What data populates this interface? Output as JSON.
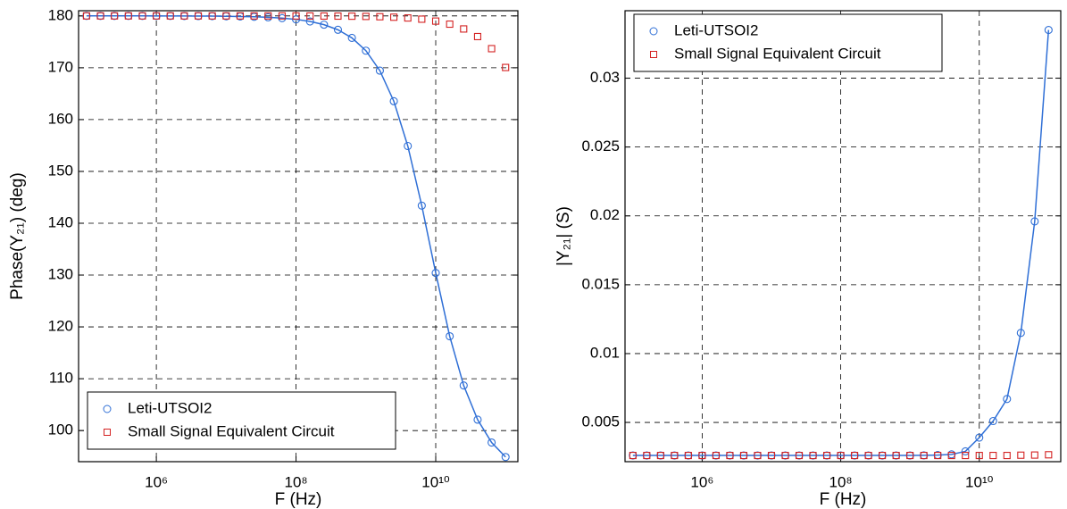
{
  "chart_data": [
    {
      "type": "line",
      "xlabel": "F (Hz)",
      "ylabel": "Phase(Y₂₁) (deg)",
      "xscale": "log",
      "grid": true,
      "legend": "lower left",
      "xlim": [
        77000,
        150000000000
      ],
      "xticks": [
        {
          "value": 1000000.0,
          "label": "10⁶"
        },
        {
          "value": 100000000.0,
          "label": "10⁸"
        },
        {
          "value": 10000000000.0,
          "label": "10¹⁰"
        }
      ],
      "ylim": [
        94,
        181
      ],
      "yticks": [
        100,
        110,
        120,
        130,
        140,
        150,
        160,
        170,
        180
      ],
      "x": [
        100000.0,
        158500.0,
        251200.0,
        398100.0,
        631000.0,
        1000000.0,
        1585000.0,
        2512000.0,
        3981000.0,
        6310000.0,
        10000000.0,
        15850000.0,
        25120000.0,
        39810000.0,
        63100000.0,
        100000000.0,
        158500000.0,
        251200000.0,
        398100000.0,
        631000000.0,
        1000000000.0,
        1585000000.0,
        2512000000.0,
        3981000000.0,
        6310000000.0,
        10000000000.0,
        15850000000.0,
        25120000000.0,
        39810000000.0,
        63100000000.0,
        100000000000.0
      ],
      "series": [
        {
          "name": "Leti-UTSOI2",
          "color": "#2f6fd6",
          "marker": "circle",
          "line": true,
          "values": [
            180,
            180,
            180,
            180,
            180,
            179.99,
            179.99,
            179.98,
            179.97,
            179.96,
            179.93,
            179.89,
            179.83,
            179.73,
            179.57,
            179.33,
            178.93,
            178.31,
            177.32,
            175.76,
            173.29,
            169.44,
            163.54,
            154.9,
            143.4,
            130.4,
            118.2,
            108.7,
            102.1,
            97.7,
            94.9
          ]
        },
        {
          "name": "Small Signal Equivalent Circuit",
          "color": "#d42222",
          "marker": "square",
          "line": false,
          "values": [
            180,
            180,
            180,
            180,
            180,
            180,
            180,
            180,
            180,
            180,
            180,
            180,
            180,
            180,
            180,
            179.99,
            179.98,
            179.97,
            179.96,
            179.94,
            179.9,
            179.84,
            179.75,
            179.6,
            179.37,
            179.0,
            178.41,
            177.48,
            176.01,
            173.68,
            170.05
          ]
        }
      ]
    },
    {
      "type": "line",
      "xlabel": "F (Hz)",
      "ylabel": "|Y₂₁| (S)",
      "xscale": "log",
      "grid": true,
      "legend": "upper left",
      "xlim": [
        77000,
        150000000000
      ],
      "xticks": [
        {
          "value": 1000000.0,
          "label": "10⁶"
        },
        {
          "value": 100000000.0,
          "label": "10⁸"
        },
        {
          "value": 10000000000.0,
          "label": "10¹⁰"
        }
      ],
      "ylim": [
        0.00215,
        0.0349
      ],
      "yticks": [
        0.005,
        0.01,
        0.015,
        0.02,
        0.025,
        0.03
      ],
      "x": [
        100000.0,
        158500.0,
        251200.0,
        398100.0,
        631000.0,
        1000000.0,
        1585000.0,
        2512000.0,
        3981000.0,
        6310000.0,
        10000000.0,
        15850000.0,
        25120000.0,
        39810000.0,
        63100000.0,
        100000000.0,
        158500000.0,
        251200000.0,
        398100000.0,
        631000000.0,
        1000000000.0,
        1585000000.0,
        2512000000.0,
        3981000000.0,
        6310000000.0,
        10000000000.0,
        15850000000.0,
        25120000000.0,
        39810000000.0,
        63100000000.0,
        100000000000.0
      ],
      "series": [
        {
          "name": "Leti-UTSOI2",
          "color": "#2f6fd6",
          "marker": "circle",
          "line": true,
          "values": [
            0.0026,
            0.0026,
            0.0026,
            0.0026,
            0.0026,
            0.0026,
            0.0026,
            0.0026,
            0.0026,
            0.0026,
            0.0026,
            0.0026,
            0.0026,
            0.0026,
            0.0026,
            0.0026,
            0.0026,
            0.0026,
            0.0026,
            0.0026,
            0.0026,
            0.00261,
            0.00263,
            0.00268,
            0.0029,
            0.0039,
            0.0051,
            0.0067,
            0.0115,
            0.0196,
            0.0335
          ]
        },
        {
          "name": "Small Signal Equivalent Circuit",
          "color": "#d42222",
          "marker": "square",
          "line": false,
          "values": [
            0.0026,
            0.0026,
            0.0026,
            0.0026,
            0.0026,
            0.0026,
            0.0026,
            0.0026,
            0.0026,
            0.0026,
            0.0026,
            0.0026,
            0.0026,
            0.0026,
            0.0026,
            0.0026,
            0.0026,
            0.0026,
            0.0026,
            0.0026,
            0.0026,
            0.0026,
            0.0026,
            0.0026,
            0.0026,
            0.0026,
            0.0026,
            0.0026,
            0.00262,
            0.00263,
            0.00265
          ]
        }
      ]
    }
  ]
}
